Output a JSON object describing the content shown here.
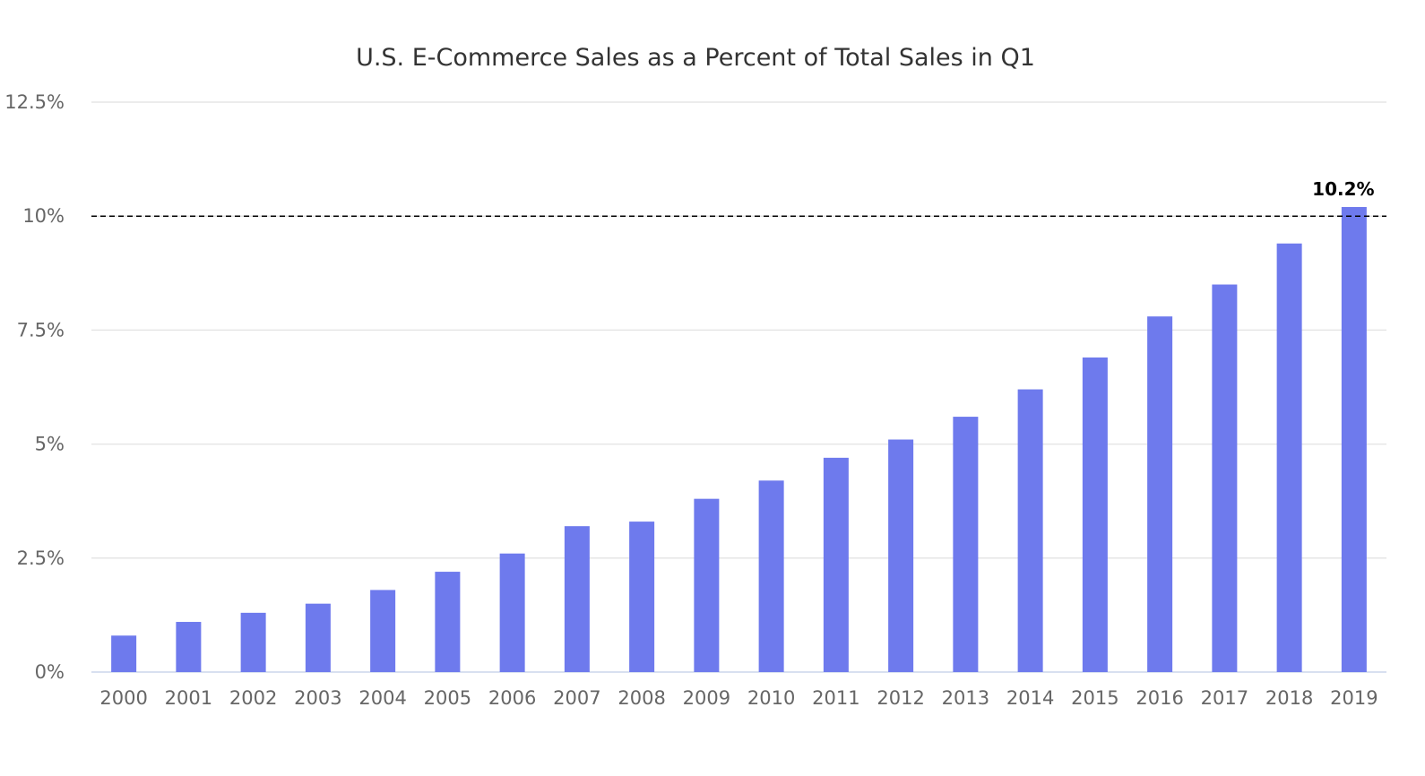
{
  "chart_data": {
    "type": "bar",
    "title": "U.S. E-Commerce Sales as a Percent of Total Sales in Q1",
    "xlabel": "",
    "ylabel": "",
    "categories": [
      "2000",
      "2001",
      "2002",
      "2003",
      "2004",
      "2005",
      "2006",
      "2007",
      "2008",
      "2009",
      "2010",
      "2011",
      "2012",
      "2013",
      "2014",
      "2015",
      "2016",
      "2017",
      "2018",
      "2019"
    ],
    "values": [
      0.8,
      1.1,
      1.3,
      1.5,
      1.8,
      2.2,
      2.6,
      3.2,
      3.3,
      3.8,
      4.2,
      4.7,
      5.1,
      5.6,
      6.2,
      6.9,
      7.8,
      8.5,
      9.4,
      10.2
    ],
    "ylim": [
      0,
      12.5
    ],
    "yticks": [
      {
        "value": 0,
        "label": "0%"
      },
      {
        "value": 2.5,
        "label": "2.5%"
      },
      {
        "value": 5,
        "label": "5%"
      },
      {
        "value": 7.5,
        "label": "7.5%"
      },
      {
        "value": 10,
        "label": "10%"
      },
      {
        "value": 12.5,
        "label": "12.5%"
      }
    ],
    "reference_line": {
      "value": 10,
      "style": "dashed"
    },
    "data_labels": [
      {
        "index": 19,
        "text": "10.2%"
      }
    ],
    "grid": true,
    "legend": "none",
    "colors": {
      "bar": "#6e7aed",
      "grid": "#e6e6e6",
      "axis": "#ccd6eb",
      "reference_line": "#000000",
      "title": "#333333",
      "tick_label": "#666666"
    }
  }
}
